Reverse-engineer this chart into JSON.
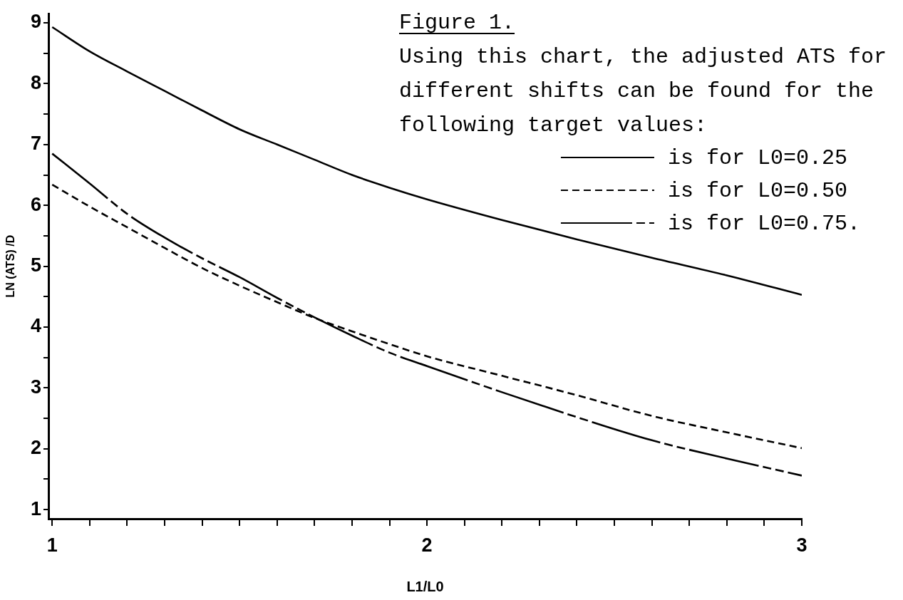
{
  "chart_data": {
    "type": "line",
    "title": "Figure 1.",
    "subtitle": "Using this chart, the adjusted ATS for different shifts can be found for the following target values:",
    "xlabel": "L1/L0",
    "ylabel": "LN (ATS) /D",
    "x": [
      1.0,
      1.1,
      1.2,
      1.3,
      1.4,
      1.5,
      1.6,
      1.7,
      1.8,
      1.9,
      2.0,
      2.2,
      2.4,
      2.6,
      2.8,
      3.0
    ],
    "series": [
      {
        "name": "is for L0=0.25",
        "color": "#000000",
        "line_style": "solid",
        "values": [
          8.93,
          8.53,
          8.2,
          7.88,
          7.56,
          7.25,
          7.0,
          6.75,
          6.5,
          6.29,
          6.1,
          5.76,
          5.44,
          5.14,
          4.85,
          4.53
        ]
      },
      {
        "name": "is for L0=0.50",
        "color": "#000000",
        "line_style": "dashed",
        "values": [
          6.34,
          5.98,
          5.64,
          5.3,
          4.97,
          4.68,
          4.41,
          4.15,
          3.93,
          3.72,
          3.52,
          3.2,
          2.88,
          2.54,
          2.27,
          2.01
        ]
      },
      {
        "name": "is for L0=0.75.",
        "color": "#000000",
        "line_style": "dashed",
        "values": [
          6.85,
          6.36,
          5.86,
          5.47,
          5.13,
          4.82,
          4.48,
          4.16,
          3.86,
          3.58,
          3.36,
          2.93,
          2.52,
          2.14,
          1.84,
          1.56
        ]
      }
    ],
    "xlim": [
      0.99,
      3
    ],
    "xticks": [
      1,
      {
        "value": 1.1,
        "label": null
      },
      {
        "value": 1.2,
        "label": null
      },
      {
        "value": 1.3,
        "label": null
      },
      {
        "value": 1.4,
        "label": null
      },
      {
        "value": 1.5,
        "label": null
      },
      {
        "value": 1.6,
        "label": null
      },
      {
        "value": 1.7,
        "label": null
      },
      {
        "value": 1.8,
        "label": null
      },
      {
        "value": 1.9,
        "label": null
      },
      2,
      {
        "value": 2.1,
        "label": null
      },
      {
        "value": 2.2,
        "label": null
      },
      {
        "value": 2.3,
        "label": null
      },
      {
        "value": 2.4,
        "label": null
      },
      {
        "value": 2.5,
        "label": null
      },
      {
        "value": 2.6,
        "label": null
      },
      {
        "value": 2.7,
        "label": null
      },
      {
        "value": 2.8,
        "label": null
      },
      {
        "value": 2.9,
        "label": null
      },
      3
    ],
    "ylim": [
      0.85,
      9.15
    ],
    "yticks": [
      1,
      {
        "value": 1.5,
        "label": null
      },
      2,
      {
        "value": 2.5,
        "label": null
      },
      3,
      {
        "value": 3.5,
        "label": null
      },
      4,
      {
        "value": 4.5,
        "label": null
      },
      5,
      {
        "value": 5.5,
        "label": null
      },
      6,
      {
        "value": 6.5,
        "label": null
      },
      7,
      {
        "value": 7.5,
        "label": null
      },
      8,
      {
        "value": 8.5,
        "label": null
      },
      9
    ],
    "grid": false,
    "legend": "top right"
  }
}
